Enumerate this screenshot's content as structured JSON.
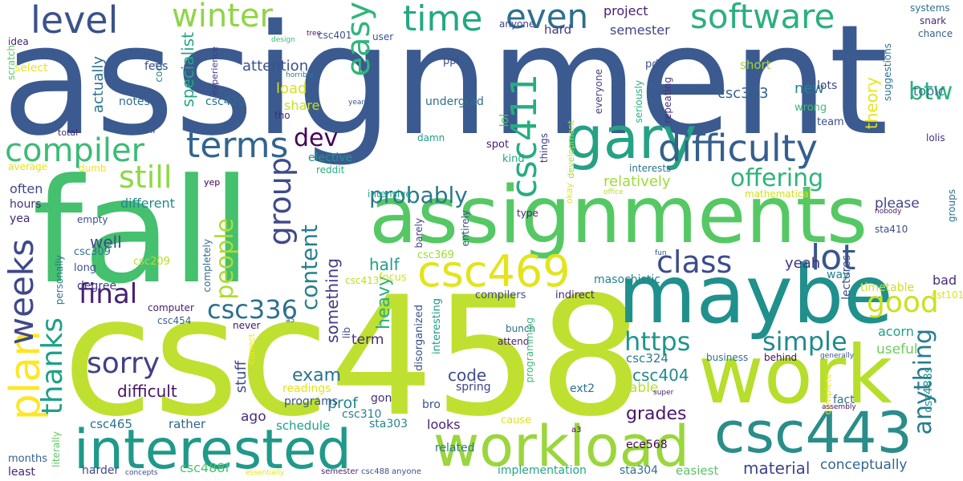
{
  "words": [
    {
      "text": "assignment",
      "color": "#3b5a8f"
    },
    {
      "text": "csc458",
      "color": "#bfe031"
    },
    {
      "text": "fall",
      "color": "#44c06e"
    },
    {
      "text": "assignments",
      "color": "#55c864"
    },
    {
      "text": "maybe",
      "color": "#20908c"
    },
    {
      "text": "work",
      "color": "#b6de2b"
    },
    {
      "text": "workload",
      "color": "#9ad63c"
    },
    {
      "text": "csc443",
      "color": "#2a8d8a"
    },
    {
      "text": "interested",
      "color": "#1f998a"
    },
    {
      "text": "gary",
      "color": "#25a184"
    },
    {
      "text": "difficulty",
      "color": "#355f8d"
    },
    {
      "text": "csc469",
      "color": "#e3e41b"
    },
    {
      "text": "compiler",
      "color": "#3cbb75"
    },
    {
      "text": "terms",
      "color": "#32658e"
    },
    {
      "text": "software",
      "color": "#2bb07f"
    },
    {
      "text": "winter",
      "color": "#8ed645"
    },
    {
      "text": "level",
      "color": "#3b528b"
    },
    {
      "text": "easy",
      "color": "#31b57b"
    },
    {
      "text": "time",
      "color": "#22a884"
    },
    {
      "text": "even",
      "color": "#2e6f8e"
    },
    {
      "text": "csc411",
      "color": "#26ad81"
    },
    {
      "text": "still",
      "color": "#8fd744"
    },
    {
      "text": "group",
      "color": "#3e4a89"
    },
    {
      "text": "lot",
      "color": "#39568c"
    },
    {
      "text": "class",
      "color": "#3e4c8a"
    },
    {
      "text": "plan",
      "color": "#fde725"
    },
    {
      "text": "weeks",
      "color": "#3f4889"
    },
    {
      "text": "sorry",
      "color": "#424086"
    },
    {
      "text": "final",
      "color": "#482173"
    },
    {
      "text": "thanks",
      "color": "#1fa187"
    },
    {
      "text": "csc336",
      "color": "#2d708e"
    },
    {
      "text": "good",
      "color": "#cae11f"
    },
    {
      "text": "https",
      "color": "#1f958b"
    },
    {
      "text": "simple",
      "color": "#238a8d"
    },
    {
      "text": "probably",
      "color": "#2a788e"
    },
    {
      "text": "offering",
      "color": "#2eb37c"
    },
    {
      "text": "people",
      "color": "#addc30"
    },
    {
      "text": "content",
      "color": "#27808e"
    },
    {
      "text": "dev",
      "color": "#440154"
    },
    {
      "text": "btw",
      "color": "#2db27d"
    },
    {
      "text": "anything",
      "color": "#287c8e"
    },
    {
      "text": "difficult",
      "color": "#471365"
    },
    {
      "text": "csc404",
      "color": "#23898e"
    },
    {
      "text": "exam",
      "color": "#2c738e"
    },
    {
      "text": "grades",
      "color": "#481567"
    },
    {
      "text": "material",
      "color": "#404588"
    },
    {
      "text": "conceptually",
      "color": "#31668e"
    },
    {
      "text": "csc465",
      "color": "#2c728e"
    },
    {
      "text": "rather",
      "color": "#33638d"
    },
    {
      "text": "ago",
      "color": "#472d7b"
    },
    {
      "text": "prof",
      "color": "#25848e"
    },
    {
      "text": "code",
      "color": "#3d4e8a"
    },
    {
      "text": "stuff",
      "color": "#3e4989"
    },
    {
      "text": "half",
      "color": "#1f9f88"
    },
    {
      "text": "something",
      "color": "#443a83"
    },
    {
      "text": "heavy",
      "color": "#29af7f"
    },
    {
      "text": "load",
      "color": "#d8e219"
    },
    {
      "text": "share",
      "color": "#c5e021"
    },
    {
      "text": "attention",
      "color": "#3b518b"
    },
    {
      "text": "specialist",
      "color": "#22a785"
    },
    {
      "text": "actually",
      "color": "#2c728e"
    },
    {
      "text": "project",
      "color": "#481f70"
    },
    {
      "text": "semester",
      "color": "#414487"
    },
    {
      "text": "hard",
      "color": "#453781"
    },
    {
      "text": "new",
      "color": "#26828e"
    },
    {
      "text": "theory",
      "color": "#e7e419"
    },
    {
      "text": "topic",
      "color": "#2a778e"
    },
    {
      "text": "csc373",
      "color": "#33638d"
    },
    {
      "text": "relatively",
      "color": "#a0da39"
    },
    {
      "text": "please",
      "color": "#414487"
    },
    {
      "text": "well",
      "color": "#3e4989"
    },
    {
      "text": "yeah",
      "color": "#46337e"
    },
    {
      "text": "csc413",
      "color": "#bddf26"
    },
    {
      "text": "timetable",
      "color": "#d0e11c"
    },
    {
      "text": "bad",
      "color": "#472c7a"
    },
    {
      "text": "acorn",
      "color": "#1fa088"
    },
    {
      "text": "useful",
      "color": "#6ccd5a"
    },
    {
      "text": "csc324",
      "color": "#287d8e"
    },
    {
      "text": "able",
      "color": "#b5de2b"
    },
    {
      "text": "term",
      "color": "#482979"
    },
    {
      "text": "lectures",
      "color": "#3d4d8a"
    },
    {
      "text": "csc488s",
      "color": "#21918c"
    },
    {
      "text": "fact",
      "color": "#2f6c8e"
    },
    {
      "text": "ece568",
      "color": "#450b5a"
    },
    {
      "text": "sta304",
      "color": "#2c728e"
    },
    {
      "text": "easiest",
      "color": "#56c667"
    },
    {
      "text": "implementation",
      "color": "#22a884"
    },
    {
      "text": "csc488f",
      "color": "#4ac16d"
    },
    {
      "text": "months",
      "color": "#33628d"
    },
    {
      "text": "least",
      "color": "#482576"
    },
    {
      "text": "harder",
      "color": "#3e4989"
    },
    {
      "text": "literally",
      "color": "#5ec962"
    },
    {
      "text": "readings",
      "color": "#e5e419"
    },
    {
      "text": "programs",
      "color": "#3b528b"
    },
    {
      "text": "schedule",
      "color": "#1fa188"
    },
    {
      "text": "looks",
      "color": "#481f70"
    },
    {
      "text": "related",
      "color": "#2a768e"
    },
    {
      "text": "sta303",
      "color": "#25848e"
    },
    {
      "text": "csc310",
      "color": "#27808e"
    },
    {
      "text": "bro",
      "color": "#3a538b"
    },
    {
      "text": "gon",
      "color": "#472d7b"
    },
    {
      "text": "spring",
      "color": "#404588"
    },
    {
      "text": "ext2",
      "color": "#2d708e"
    },
    {
      "text": "cause",
      "color": "#dde318"
    },
    {
      "text": "a3",
      "color": "#440154"
    },
    {
      "text": "csc209",
      "color": "#b8de29"
    },
    {
      "text": "csc309",
      "color": "#2b758e"
    },
    {
      "text": "long",
      "color": "#3b528b"
    },
    {
      "text": "degree",
      "color": "#443983"
    },
    {
      "text": "often",
      "color": "#3f4788"
    },
    {
      "text": "hours",
      "color": "#46307e"
    },
    {
      "text": "yea",
      "color": "#482878"
    },
    {
      "text": "empty",
      "color": "#3c508b"
    },
    {
      "text": "different",
      "color": "#23888e"
    },
    {
      "text": "average",
      "color": "#e2e418"
    },
    {
      "text": "dumb",
      "color": "#f1e51d"
    },
    {
      "text": "yep",
      "color": "#440154"
    },
    {
      "text": "total",
      "color": "#482374"
    },
    {
      "text": "know",
      "color": "#39558c"
    },
    {
      "text": "notes",
      "color": "#2e6e8e"
    },
    {
      "text": "cool",
      "color": "#238a8d"
    },
    {
      "text": "fees",
      "color": "#3e4a89"
    },
    {
      "text": "idea",
      "color": "#481a6c"
    },
    {
      "text": "select",
      "color": "#eae51a"
    },
    {
      "text": "scratch",
      "color": "#5ac864"
    },
    {
      "text": "design",
      "color": "#35b779"
    },
    {
      "text": "tree",
      "color": "#470e61"
    },
    {
      "text": "csc401",
      "color": "#3b528b"
    },
    {
      "text": "horrible",
      "color": "#2a788e"
    },
    {
      "text": "csc420",
      "color": "#2e6d8e"
    },
    {
      "text": "experience",
      "color": "#433e85"
    },
    {
      "text": "tho",
      "color": "#482979"
    },
    {
      "text": "reddit",
      "color": "#29af7f"
    },
    {
      "text": "elective",
      "color": "#1f968b"
    },
    {
      "text": "user",
      "color": "#3b528b"
    },
    {
      "text": "anyone",
      "color": "#404688"
    },
    {
      "text": "ppl",
      "color": "#3e4c8a"
    },
    {
      "text": "undergrad",
      "color": "#2e6f8e"
    },
    {
      "text": "years",
      "color": "#38598c"
    },
    {
      "text": "lol",
      "color": "#4ec36b"
    },
    {
      "text": "damn",
      "color": "#1f9e89"
    },
    {
      "text": "spot",
      "color": "#481d6f"
    },
    {
      "text": "kind",
      "color": "#22a785"
    },
    {
      "text": "things",
      "color": "#453882"
    },
    {
      "text": "development",
      "color": "#a5db36"
    },
    {
      "text": "everyone",
      "color": "#424086"
    },
    {
      "text": "seriously",
      "color": "#2ab07f"
    },
    {
      "text": "pdm",
      "color": "#3a538b"
    },
    {
      "text": "repeating",
      "color": "#46327e"
    },
    {
      "text": "short",
      "color": "#a2da37"
    },
    {
      "text": "wrong",
      "color": "#40bd72"
    },
    {
      "text": "lots",
      "color": "#3f4889"
    },
    {
      "text": "team",
      "color": "#3d4e8a"
    },
    {
      "text": "suggestions",
      "color": "#2c738e"
    },
    {
      "text": "systems",
      "color": "#2d708e"
    },
    {
      "text": "snark",
      "color": "#482979"
    },
    {
      "text": "chance",
      "color": "#34618d"
    },
    {
      "text": "lolis",
      "color": "#472f7d"
    },
    {
      "text": "interests",
      "color": "#2d718e"
    },
    {
      "text": "office",
      "color": "#b2dd2d"
    },
    {
      "text": "mathematical",
      "color": "#cde11d"
    },
    {
      "text": "okay",
      "color": "#e1e418"
    },
    {
      "text": "intensive",
      "color": "#1f9e89"
    },
    {
      "text": "type",
      "color": "#482173"
    },
    {
      "text": "barely",
      "color": "#424186"
    },
    {
      "text": "entirely",
      "color": "#3a548c"
    },
    {
      "text": "nobody",
      "color": "#48186a"
    },
    {
      "text": "groups",
      "color": "#2c718e"
    },
    {
      "text": "sta410",
      "color": "#3d4d8a"
    },
    {
      "text": "ast101",
      "color": "#dde318"
    },
    {
      "text": "fun",
      "color": "#3a548c"
    },
    {
      "text": "way",
      "color": "#26828e"
    },
    {
      "text": "masochistic",
      "color": "#26828e"
    },
    {
      "text": "indirect",
      "color": "#482576"
    },
    {
      "text": "compilers",
      "color": "#3e4989"
    },
    {
      "text": "interesting",
      "color": "#1f998a"
    },
    {
      "text": "disorganized",
      "color": "#3d4e8a"
    },
    {
      "text": "focus",
      "color": "#d2e21b"
    },
    {
      "text": "csc369",
      "color": "#9bd93c"
    },
    {
      "text": "personally",
      "color": "#2c738e"
    },
    {
      "text": "completely",
      "color": "#2e6e8e"
    },
    {
      "text": "computer",
      "color": "#482071"
    },
    {
      "text": "csc454",
      "color": "#33628d"
    },
    {
      "text": "never",
      "color": "#471164"
    },
    {
      "text": "a5",
      "color": "#3b528b"
    },
    {
      "text": "lib",
      "color": "#3d4d8a"
    },
    {
      "text": "correct",
      "color": "#f4e61e"
    },
    {
      "text": "bunch",
      "color": "#2e6f8e"
    },
    {
      "text": "attend",
      "color": "#481d6f"
    },
    {
      "text": "programming",
      "color": "#3cbb75"
    },
    {
      "text": "business",
      "color": "#2d708e"
    },
    {
      "text": "behind",
      "color": "#460a5d"
    },
    {
      "text": "generally",
      "color": "#39558c"
    },
    {
      "text": "super",
      "color": "#481d6f"
    },
    {
      "text": "complete",
      "color": "#e4e419"
    },
    {
      "text": "assembly",
      "color": "#460b5e"
    },
    {
      "text": "concepts",
      "color": "#3e4989"
    },
    {
      "text": "essentially",
      "color": "#e2e418"
    },
    {
      "text": "semester",
      "color": "#482475"
    },
    {
      "text": "csc488",
      "color": "#3b528b"
    },
    {
      "text": "anyone",
      "color": "#3b528b"
    }
  ]
}
